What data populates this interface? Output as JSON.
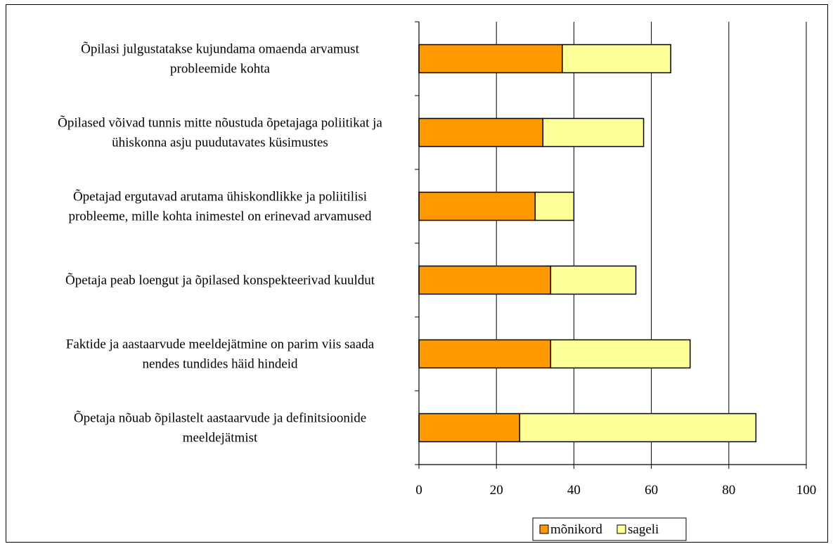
{
  "chart_data": {
    "type": "bar",
    "orientation": "horizontal",
    "stacked": true,
    "title": "",
    "xlabel": "",
    "ylabel": "",
    "xlim": [
      0,
      100
    ],
    "x_ticks": [
      "0",
      "20",
      "40",
      "60",
      "80",
      "100"
    ],
    "grid": "vertical",
    "legend_position": "bottom",
    "categories": [
      [
        "Õpilasi julgustatakse kujundama omaenda arvamust",
        "probleemide kohta"
      ],
      [
        "Õpilased võivad tunnis mitte nõustuda õpetajaga poliitikat ja",
        "ühiskonna asju puudutavates küsimustes"
      ],
      [
        "Õpetajad ergutavad arutama ühiskondlikke ja poliitilisi",
        "probleeme, mille kohta inimestel on erinevad arvamused"
      ],
      [
        "Õpetaja peab loengut ja õpilased konspekteerivad kuuldut"
      ],
      [
        "Faktide ja aastaarvude meeldejätmine on parim viis saada",
        "nendes tundides häid hindeid"
      ],
      [
        "Õpetaja nõuab õpilastelt aastaarvude ja definitsioonide",
        "meeldejätmist"
      ]
    ],
    "series": [
      {
        "name": "mõnikord",
        "color": "#FF9900",
        "values": [
          37,
          32,
          30,
          34,
          34,
          26
        ]
      },
      {
        "name": "sageli",
        "color": "#FFFF99",
        "values": [
          28,
          26,
          10,
          22,
          36,
          61
        ]
      }
    ]
  }
}
